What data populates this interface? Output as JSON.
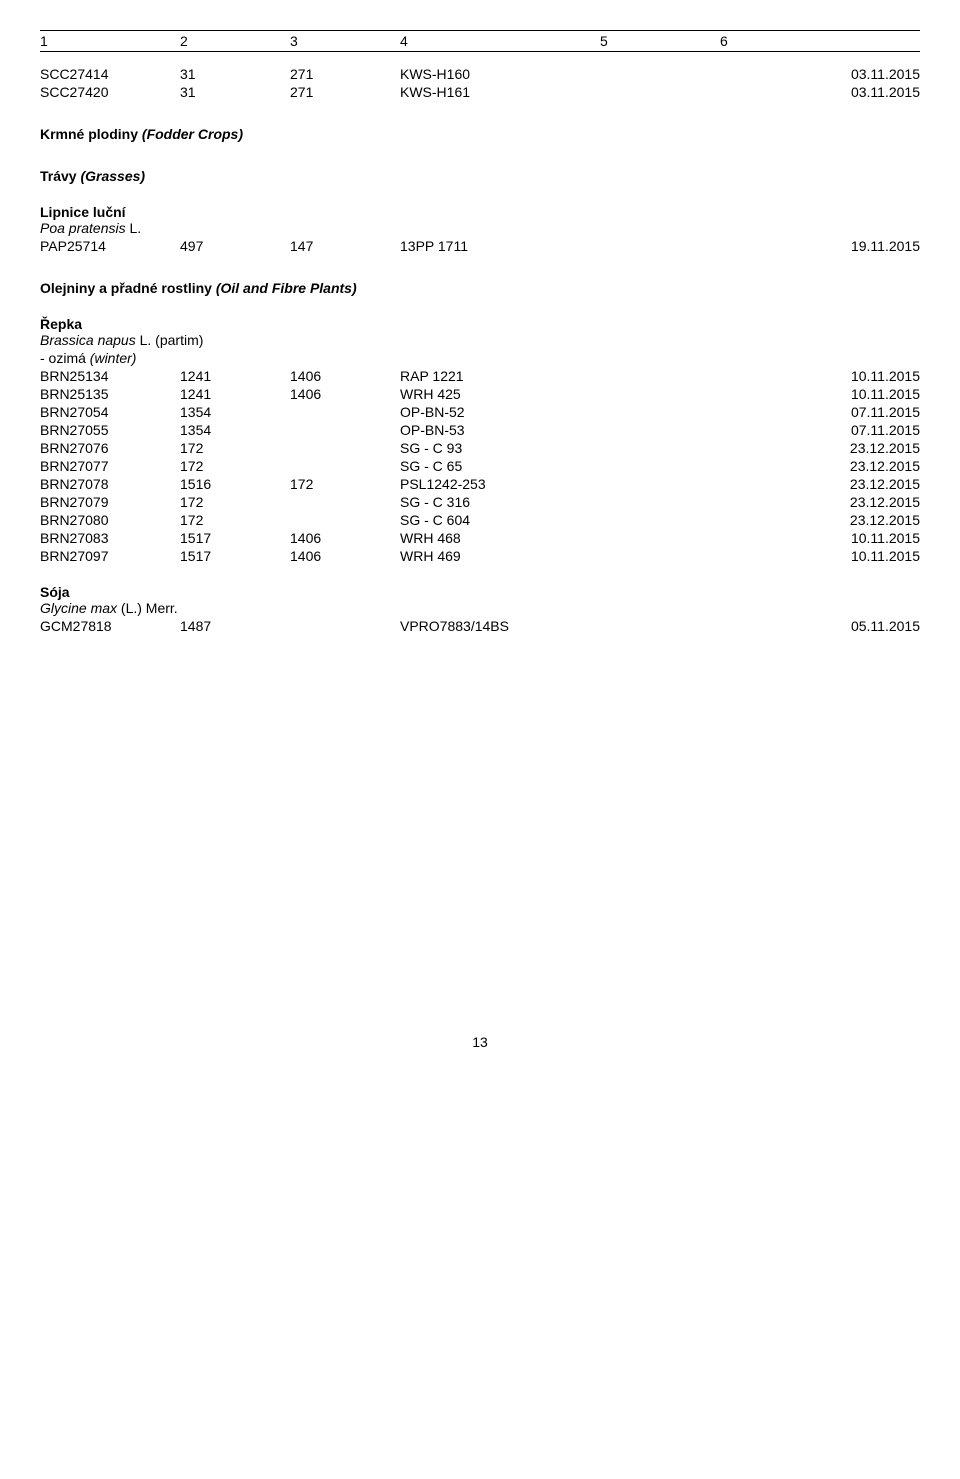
{
  "header": {
    "h1": "1",
    "h2": "2",
    "h3": "3",
    "h4": "4",
    "h5": "5",
    "h6": "6"
  },
  "top_rows": [
    {
      "c1": "SCC27414",
      "c2": "31",
      "c3": "271",
      "c4": "KWS-H160",
      "date": "03.11.2015"
    },
    {
      "c1": "SCC27420",
      "c2": "31",
      "c3": "271",
      "c4": "KWS-H161",
      "date": "03.11.2015"
    }
  ],
  "s_fodder": {
    "bold": "Krmné plodiny ",
    "italic": "(Fodder Crops)"
  },
  "s_grasses": {
    "bold": "Trávy ",
    "italic": "(Grasses)"
  },
  "lipnice": {
    "name": "Lipnice luční",
    "species": "Poa pratensis",
    "author": " L."
  },
  "lipnice_rows": [
    {
      "c1": "PAP25714",
      "c2": "497",
      "c3": "147",
      "c4": "13PP 1711",
      "date": "19.11.2015"
    }
  ],
  "s_oil": {
    "bold": "Olejniny a přadné rostliny ",
    "italic": "(Oil and Fibre Plants)"
  },
  "repka": {
    "name": "Řepka",
    "species": "Brassica napus",
    "author": " L. (partim)",
    "note_a": "- ozimá ",
    "note_b": "(winter)"
  },
  "repka_rows": [
    {
      "c1": "BRN25134",
      "c2": "1241",
      "c3": "1406",
      "c4": "RAP 1221",
      "date": "10.11.2015"
    },
    {
      "c1": "BRN25135",
      "c2": "1241",
      "c3": "1406",
      "c4": "WRH 425",
      "date": "10.11.2015"
    },
    {
      "c1": "BRN27054",
      "c2": "1354",
      "c3": "",
      "c4": "OP-BN-52",
      "date": "07.11.2015"
    },
    {
      "c1": "BRN27055",
      "c2": "1354",
      "c3": "",
      "c4": "OP-BN-53",
      "date": "07.11.2015"
    },
    {
      "c1": "BRN27076",
      "c2": "172",
      "c3": "",
      "c4": "SG - C 93",
      "date": "23.12.2015"
    },
    {
      "c1": "BRN27077",
      "c2": "172",
      "c3": "",
      "c4": "SG - C 65",
      "date": "23.12.2015"
    },
    {
      "c1": "BRN27078",
      "c2": "1516",
      "c3": "172",
      "c4": "PSL1242-253",
      "date": "23.12.2015"
    },
    {
      "c1": "BRN27079",
      "c2": "172",
      "c3": "",
      "c4": "SG - C 316",
      "date": "23.12.2015"
    },
    {
      "c1": "BRN27080",
      "c2": "172",
      "c3": "",
      "c4": "SG - C 604",
      "date": "23.12.2015"
    },
    {
      "c1": "BRN27083",
      "c2": "1517",
      "c3": "1406",
      "c4": "WRH 468",
      "date": "10.11.2015"
    },
    {
      "c1": "BRN27097",
      "c2": "1517",
      "c3": "1406",
      "c4": "WRH 469",
      "date": "10.11.2015"
    }
  ],
  "soja": {
    "name": "Sója",
    "species": "Glycine max",
    "author": " (L.) Merr."
  },
  "soja_rows": [
    {
      "c1": "GCM27818",
      "c2": "1487",
      "c3": "",
      "c4": "VPRO7883/14BS",
      "date": "05.11.2015"
    }
  ],
  "page_number": "13"
}
